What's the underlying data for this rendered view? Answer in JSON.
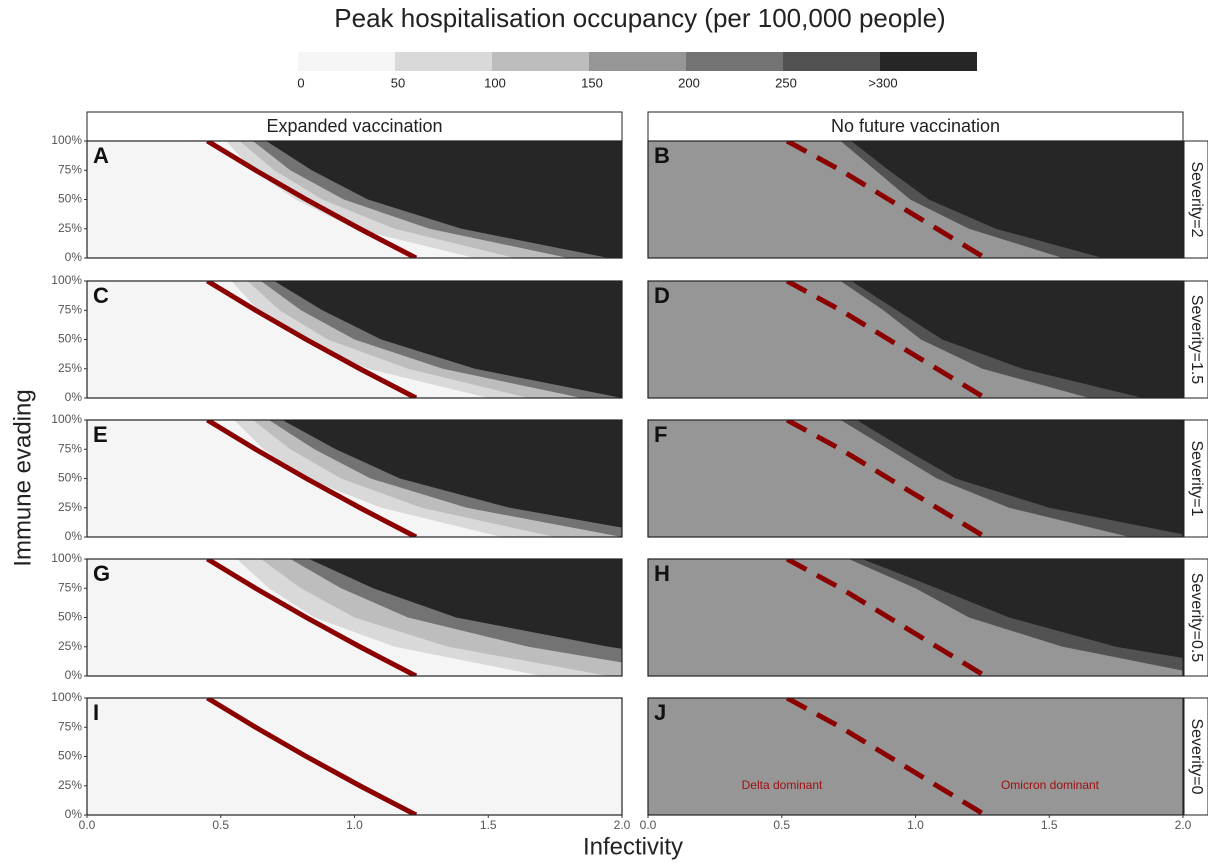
{
  "chart_data": {
    "type": "heatmap",
    "title": "Peak hospitalisation occupancy (per 100,000 people)",
    "legend": {
      "ticks": [
        0,
        50,
        100,
        150,
        200,
        250,
        {
          "value": 300,
          "label": ">300"
        }
      ],
      "colors": [
        "#f5f5f5",
        "#d9d9d9",
        "#bdbdbd",
        "#969696",
        "#737373",
        "#525252",
        "#262626"
      ]
    },
    "xlabel": "Infectivity",
    "ylabel": "Immune evading",
    "xlim": [
      0,
      2
    ],
    "ylim": [
      0,
      100
    ],
    "xticks": [
      {
        "value": 0,
        "label": "0.0"
      },
      0.5,
      {
        "value": 1,
        "label": "1.0"
      },
      1.5,
      {
        "value": 2,
        "label": "2.0"
      }
    ],
    "yticks": [
      {
        "value": 0,
        "label": "0%"
      },
      {
        "value": 25,
        "label": "25%"
      },
      {
        "value": 50,
        "label": "50%"
      },
      {
        "value": 75,
        "label": "75%"
      },
      {
        "value": 100,
        "label": "100%"
      }
    ],
    "columns": [
      "Expanded vaccination",
      "No future vaccination"
    ],
    "rows": [
      "Severity=2",
      "Severity=1.5",
      "Severity=1",
      "Severity=0.5",
      "Severity=0"
    ],
    "contour_y": [
      0,
      25,
      50,
      75,
      100
    ],
    "panels": [
      {
        "label": "A",
        "background": 0,
        "contours": [
          {
            "level": 50,
            "x": [
              1.45,
              1.0,
              0.78,
              0.62,
              0.52
            ]
          },
          {
            "level": 100,
            "x": [
              1.6,
              1.15,
              0.88,
              0.7,
              0.57
            ]
          },
          {
            "level": 200,
            "x": [
              1.8,
              1.28,
              0.96,
              0.76,
              0.62
            ]
          },
          {
            "level": 300,
            "x": [
              1.95,
              1.4,
              1.05,
              0.84,
              0.67
            ]
          }
        ]
      },
      {
        "label": "B",
        "background": 175,
        "contours": [
          {
            "level": 250,
            "x": [
              1.55,
              1.2,
              0.98,
              0.85,
              0.72
            ]
          },
          {
            "level": 300,
            "x": [
              1.7,
              1.3,
              1.05,
              0.9,
              0.76
            ]
          }
        ]
      },
      {
        "label": "C",
        "background": 0,
        "contours": [
          {
            "level": 50,
            "x": [
              1.5,
              1.05,
              0.8,
              0.64,
              0.54
            ]
          },
          {
            "level": 100,
            "x": [
              1.65,
              1.2,
              0.9,
              0.72,
              0.6
            ]
          },
          {
            "level": 200,
            "x": [
              1.85,
              1.33,
              1.0,
              0.8,
              0.65
            ]
          },
          {
            "level": 300,
            "x": [
              2.0,
              1.45,
              1.1,
              0.88,
              0.7
            ]
          }
        ]
      },
      {
        "label": "D",
        "background": 175,
        "contours": [
          {
            "level": 250,
            "x": [
              1.65,
              1.25,
              1.02,
              0.88,
              0.72
            ]
          },
          {
            "level": 300,
            "x": [
              1.85,
              1.4,
              1.1,
              0.93,
              0.76
            ]
          }
        ]
      },
      {
        "label": "E",
        "background": 0,
        "contours": [
          {
            "level": 50,
            "x": [
              1.55,
              1.1,
              0.82,
              0.66,
              0.55
            ]
          },
          {
            "level": 100,
            "x": [
              1.75,
              1.25,
              0.95,
              0.76,
              0.62
            ]
          },
          {
            "level": 200,
            "x": [
              2.0,
              1.42,
              1.06,
              0.85,
              0.68
            ]
          },
          {
            "level": 300,
            "x": [
              2.2,
              1.58,
              1.17,
              0.93,
              0.73
            ]
          }
        ]
      },
      {
        "label": "F",
        "background": 175,
        "contours": [
          {
            "level": 250,
            "x": [
              1.8,
              1.35,
              1.08,
              0.9,
              0.72
            ]
          },
          {
            "level": 300,
            "x": [
              2.05,
              1.5,
              1.15,
              0.96,
              0.78
            ]
          }
        ]
      },
      {
        "label": "G",
        "background": 0,
        "contours": [
          {
            "level": 50,
            "x": [
              1.7,
              1.15,
              0.85,
              0.68,
              0.56
            ]
          },
          {
            "level": 100,
            "x": [
              1.95,
              1.35,
              1.0,
              0.8,
              0.65
            ]
          },
          {
            "level": 200,
            "x": [
              2.3,
              1.65,
              1.2,
              0.95,
              0.76
            ]
          },
          {
            "level": 300,
            "x": [
              2.7,
              1.95,
              1.38,
              1.07,
              0.83
            ]
          }
        ]
      },
      {
        "label": "H",
        "background": 175,
        "contours": [
          {
            "level": 250,
            "x": [
              2.1,
              1.55,
              1.2,
              1.0,
              0.75
            ]
          },
          {
            "level": 300,
            "x": [
              2.4,
              1.75,
              1.35,
              1.08,
              0.8
            ]
          }
        ]
      },
      {
        "label": "I",
        "background": 0,
        "contours": []
      },
      {
        "label": "J",
        "background": 175,
        "contours": []
      }
    ],
    "reference_lines": [
      {
        "style": "solid",
        "color": "#8b0000",
        "x": [
          0.45,
          0.63,
          0.82,
          1.02,
          1.23
        ],
        "y": [
          100,
          75,
          50,
          25,
          0
        ]
      },
      {
        "style": "dashed",
        "color": "#8b0000",
        "x": [
          0.52,
          0.72,
          0.9,
          1.08,
          1.26
        ],
        "y": [
          100,
          75,
          50,
          25,
          0
        ]
      }
    ],
    "annotations": [
      "Delta dominant",
      "Omicron dominant"
    ]
  }
}
